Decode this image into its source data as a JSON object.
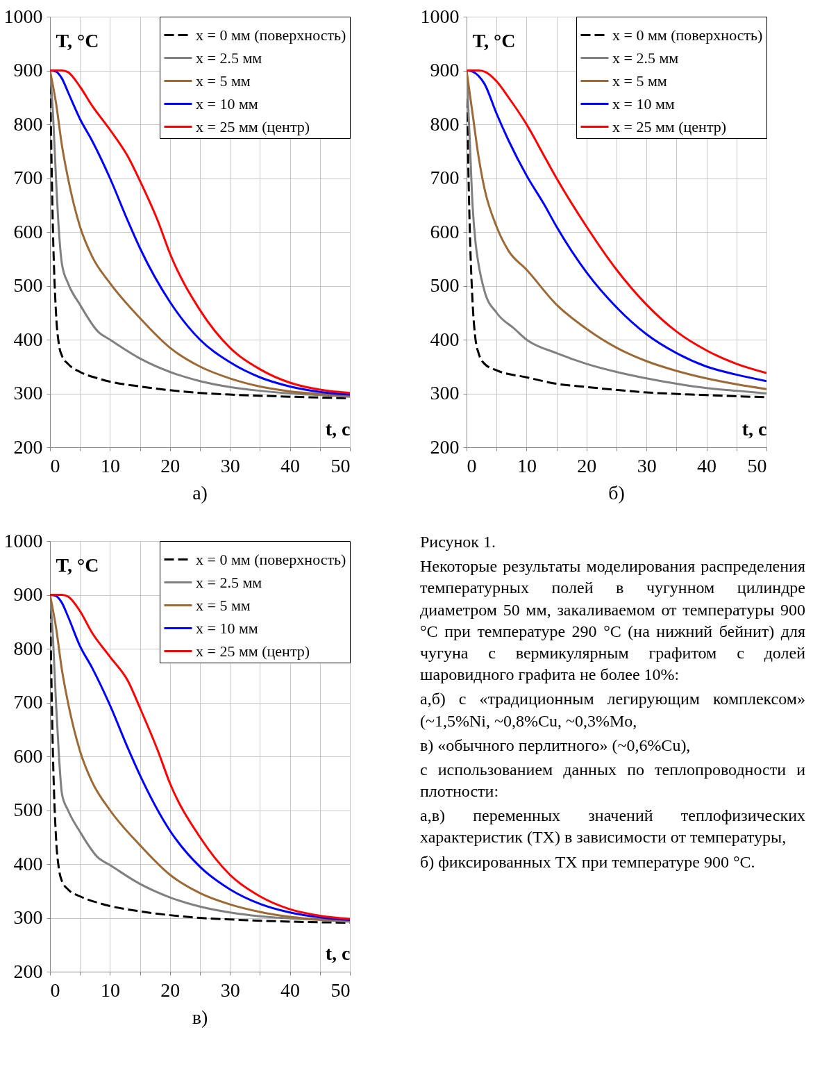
{
  "chart_data": [
    {
      "type": "line",
      "title": "а)",
      "xlabel": "t, с",
      "ylabel": "T, °C",
      "xlim": [
        0,
        50
      ],
      "ylim": [
        200,
        1000
      ],
      "xticks": [
        0,
        {
          "value": 5,
          "label": null
        },
        10,
        {
          "value": 15,
          "label": null
        },
        20,
        {
          "value": 25,
          "label": null
        },
        30,
        {
          "value": 35,
          "label": null
        },
        40,
        {
          "value": 45,
          "label": null
        },
        50
      ],
      "yticks": [
        200,
        300,
        400,
        500,
        600,
        700,
        800,
        900,
        1000
      ],
      "grid": true,
      "legend": "top right",
      "series": [
        {
          "name": "x = 0 мм (поверхность)",
          "color": "#000000",
          "line_style": "dashed",
          "x": [
            0,
            0.5,
            1,
            1.5,
            2,
            3,
            5,
            8,
            10,
            15,
            20,
            25,
            30,
            40,
            50
          ],
          "values": [
            900,
            600,
            450,
            390,
            370,
            355,
            340,
            328,
            322,
            313,
            306,
            301,
            298,
            294,
            291
          ]
        },
        {
          "name": "x = 2.5 мм",
          "color": "#808080",
          "line_style": "solid",
          "x": [
            0,
            0.5,
            1,
            1.5,
            2,
            3,
            5,
            8,
            10,
            15,
            20,
            25,
            30,
            35,
            40,
            45,
            50
          ],
          "values": [
            900,
            820,
            700,
            600,
            540,
            505,
            465,
            415,
            400,
            365,
            340,
            323,
            312,
            305,
            300,
            297,
            294
          ]
        },
        {
          "name": "x = 5 мм",
          "color": "#9c6a36",
          "line_style": "solid",
          "x": [
            0,
            1,
            2,
            3,
            5,
            7,
            10,
            15,
            20,
            25,
            30,
            35,
            40,
            45,
            50
          ],
          "values": [
            900,
            840,
            760,
            700,
            610,
            555,
            505,
            440,
            385,
            350,
            328,
            313,
            304,
            299,
            296
          ]
        },
        {
          "name": "x = 10 мм",
          "color": "#0000ff",
          "line_style": "solid",
          "x": [
            0,
            1,
            2,
            3,
            5,
            7,
            10,
            13,
            15,
            20,
            25,
            30,
            35,
            40,
            45,
            50
          ],
          "values": [
            900,
            898,
            885,
            860,
            810,
            770,
            700,
            620,
            570,
            470,
            400,
            358,
            330,
            313,
            303,
            298
          ]
        },
        {
          "name": "x = 25 мм (центр)",
          "color": "#ff0000",
          "line_style": "solid",
          "x": [
            0,
            2,
            3,
            5,
            7,
            10,
            13,
            15,
            18,
            20,
            25,
            30,
            35,
            40,
            45,
            50
          ],
          "values": [
            900,
            900,
            897,
            870,
            835,
            790,
            740,
            695,
            620,
            560,
            455,
            385,
            345,
            320,
            307,
            301
          ]
        }
      ]
    },
    {
      "type": "line",
      "title": "б)",
      "xlabel": "t, с",
      "ylabel": "T, °C",
      "xlim": [
        0,
        50
      ],
      "ylim": [
        200,
        1000
      ],
      "xticks": [
        0,
        {
          "value": 5,
          "label": null
        },
        10,
        {
          "value": 15,
          "label": null
        },
        20,
        {
          "value": 25,
          "label": null
        },
        30,
        {
          "value": 35,
          "label": null
        },
        40,
        {
          "value": 45,
          "label": null
        },
        50
      ],
      "yticks": [
        200,
        300,
        400,
        500,
        600,
        700,
        800,
        900,
        1000
      ],
      "grid": true,
      "legend": "top right",
      "series": [
        {
          "name": "x = 0 мм (поверхность)",
          "color": "#000000",
          "line_style": "dashed",
          "x": [
            0,
            0.5,
            1,
            1.5,
            2,
            3,
            5,
            10,
            15,
            20,
            30,
            40,
            50
          ],
          "values": [
            900,
            620,
            470,
            400,
            375,
            355,
            343,
            330,
            318,
            312,
            302,
            297,
            293
          ]
        },
        {
          "name": "x = 2.5 мм",
          "color": "#808080",
          "line_style": "solid",
          "x": [
            0,
            0.5,
            1,
            1.5,
            2,
            3,
            5,
            8,
            10,
            15,
            20,
            25,
            30,
            35,
            40,
            45,
            50
          ],
          "values": [
            900,
            780,
            650,
            580,
            540,
            490,
            450,
            420,
            400,
            375,
            355,
            340,
            328,
            318,
            310,
            305,
            300
          ]
        },
        {
          "name": "x = 5 мм",
          "color": "#9c6a36",
          "line_style": "solid",
          "x": [
            0,
            1,
            2,
            3,
            5,
            7,
            10,
            15,
            20,
            25,
            30,
            35,
            40,
            45,
            50
          ],
          "values": [
            900,
            820,
            740,
            680,
            610,
            565,
            530,
            465,
            420,
            385,
            360,
            342,
            328,
            317,
            308
          ]
        },
        {
          "name": "x = 10 мм",
          "color": "#0000ff",
          "line_style": "solid",
          "x": [
            0,
            1,
            2,
            3,
            5,
            7,
            10,
            13,
            15,
            20,
            25,
            30,
            35,
            40,
            45,
            50
          ],
          "values": [
            900,
            898,
            890,
            875,
            820,
            770,
            705,
            650,
            610,
            525,
            460,
            410,
            375,
            350,
            335,
            323
          ]
        },
        {
          "name": "x = 25 мм (центр)",
          "color": "#ff0000",
          "line_style": "solid",
          "x": [
            0,
            2,
            3,
            5,
            7,
            10,
            13,
            15,
            20,
            25,
            30,
            35,
            40,
            45,
            50
          ],
          "values": [
            900,
            900,
            898,
            880,
            850,
            800,
            740,
            700,
            610,
            530,
            465,
            415,
            380,
            355,
            338
          ]
        }
      ]
    },
    {
      "type": "line",
      "title": "в)",
      "xlabel": "t, с",
      "ylabel": "T, °C",
      "xlim": [
        0,
        50
      ],
      "ylim": [
        200,
        1000
      ],
      "xticks": [
        0,
        {
          "value": 5,
          "label": null
        },
        10,
        {
          "value": 15,
          "label": null
        },
        20,
        {
          "value": 25,
          "label": null
        },
        30,
        {
          "value": 35,
          "label": null
        },
        40,
        {
          "value": 45,
          "label": null
        },
        50
      ],
      "yticks": [
        200,
        300,
        400,
        500,
        600,
        700,
        800,
        900,
        1000
      ],
      "grid": true,
      "legend": "top right",
      "series": [
        {
          "name": "x = 0 мм (поверхность)",
          "color": "#000000",
          "line_style": "dashed",
          "x": [
            0,
            0.5,
            1,
            1.5,
            2,
            3,
            5,
            8,
            10,
            15,
            20,
            25,
            30,
            40,
            50
          ],
          "values": [
            900,
            600,
            450,
            390,
            368,
            353,
            340,
            328,
            322,
            312,
            305,
            300,
            297,
            293,
            291
          ]
        },
        {
          "name": "x = 2.5 мм",
          "color": "#808080",
          "line_style": "solid",
          "x": [
            0,
            0.5,
            1,
            1.5,
            2,
            3,
            5,
            8,
            10,
            15,
            20,
            25,
            30,
            35,
            40,
            45,
            50
          ],
          "values": [
            900,
            820,
            700,
            600,
            530,
            500,
            460,
            412,
            398,
            363,
            338,
            321,
            310,
            303,
            299,
            296,
            293
          ]
        },
        {
          "name": "x = 5 мм",
          "color": "#9c6a36",
          "line_style": "solid",
          "x": [
            0,
            1,
            2,
            3,
            5,
            7,
            10,
            15,
            20,
            25,
            30,
            35,
            40,
            45,
            50
          ],
          "values": [
            900,
            840,
            760,
            700,
            610,
            553,
            500,
            435,
            380,
            346,
            325,
            311,
            302,
            297,
            295
          ]
        },
        {
          "name": "x = 10 мм",
          "color": "#0000ff",
          "line_style": "solid",
          "x": [
            0,
            1,
            2,
            3,
            5,
            7,
            10,
            13,
            15,
            20,
            25,
            30,
            35,
            40,
            45,
            50
          ],
          "values": [
            900,
            898,
            885,
            860,
            805,
            765,
            695,
            615,
            565,
            462,
            395,
            353,
            326,
            310,
            301,
            296
          ]
        },
        {
          "name": "x = 25 мм (центр)",
          "color": "#ff0000",
          "line_style": "solid",
          "x": [
            0,
            2,
            3,
            5,
            7,
            10,
            13,
            15,
            18,
            20,
            25,
            30,
            35,
            40,
            45,
            50
          ],
          "values": [
            900,
            900,
            897,
            870,
            830,
            785,
            740,
            690,
            610,
            550,
            450,
            380,
            340,
            316,
            304,
            298
          ]
        }
      ]
    },
    {
      "type": "other",
      "title": "Рисунок 1.",
      "annotations": [
        "Некоторые результаты моделирования распределения температурных полей в чугунном цилиндре диаметром 50 мм, закаливаемом от температуры 900 °С при температуре 290 °С (на нижний бейнит) для чугуна с вермикулярным графитом с долей шаровидного графита не более 10%:",
        "а,б) с «традиционным легирующим комплексом» (~1,5%Ni, ~0,8%Cu, ~0,3%Mo,",
        "в) «обычного перлитного» (~0,6%Cu),",
        "с использованием данных по теплопроводности и плотности:",
        "а,в) переменных значений теплофизических характеристик (ТХ) в зависимости от температуры,",
        "б) фиксированных ТХ при температуре 900 °С."
      ]
    }
  ]
}
